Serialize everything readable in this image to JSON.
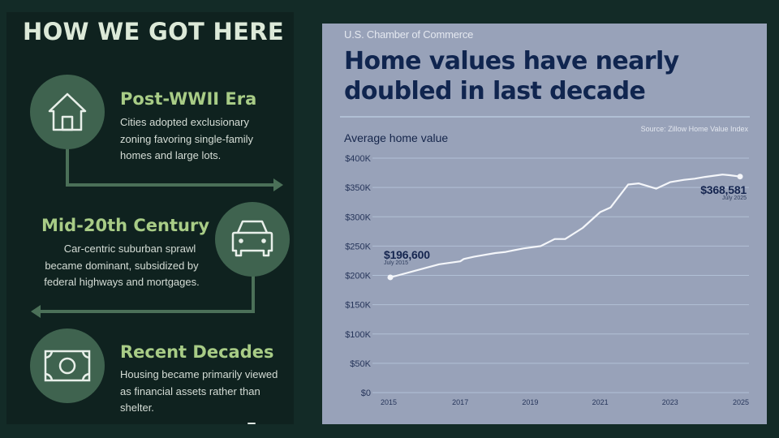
{
  "left_panel": {
    "title": "HOW WE GOT HERE",
    "eras": [
      {
        "icon": "house-icon",
        "title": "Post-WWII Era",
        "lines": [
          "Cities adopted exclusionary",
          "zoning favoring single-family",
          "homes and large lots."
        ]
      },
      {
        "icon": "car-icon",
        "title": "Mid-20th Century",
        "lines": [
          "Car-centric suburban sprawl",
          "became dominant, subsidized by",
          "federal highways and mortgages."
        ]
      },
      {
        "icon": "money-bill-icon",
        "title": "Recent Decades",
        "lines": [
          "Housing became primarily viewed",
          "as financial assets rather than",
          "shelter."
        ]
      }
    ],
    "colors": {
      "background": "#0f221f",
      "circle": "#3f634f",
      "title": "#dce9d8",
      "era_title": "#a8cc86",
      "connector": "#4b7058"
    }
  },
  "right_panel": {
    "org": "U.S. Chamber of Commerce",
    "headline_line1": "Home values have nearly",
    "headline_line2": "doubled in last decade",
    "source": "Source: Zillow Home Value Index",
    "y_title": "Average home value",
    "start_label": {
      "value": "$196,600",
      "date": "July 2015"
    },
    "end_label": {
      "value": "$368,581",
      "date": "July 2025"
    },
    "colors": {
      "background": "#98a2b9",
      "headline": "#10254f",
      "line": "#f4f6fa",
      "grid": "#b2c0d6"
    }
  },
  "chart_data": {
    "type": "line",
    "title": "Home values have nearly doubled in last decade",
    "subtitle": "U.S. Chamber of Commerce",
    "source": "Source: Zillow Home Value Index",
    "xlabel": "",
    "ylabel": "Average home value",
    "x_ticks": [
      "2015",
      "2017",
      "2019",
      "2021",
      "2023",
      "2025"
    ],
    "y_ticks": [
      "$0",
      "$50K",
      "$100K",
      "$150K",
      "$200K",
      "$250K",
      "$300K",
      "$350K",
      "$400K"
    ],
    "ylim": [
      0,
      400000
    ],
    "xlim": [
      2015,
      2025
    ],
    "grid": true,
    "legend": "none",
    "series": [
      {
        "name": "Average home value",
        "x": [
          2015.5,
          2016.9,
          2017.5,
          2017.6,
          2017.9,
          2018.5,
          2018.8,
          2019.3,
          2019.8,
          2020.2,
          2020.5,
          2021.0,
          2021.5,
          2021.8,
          2022.3,
          2022.6,
          2023.1,
          2023.5,
          2023.9,
          2024.2,
          2024.5,
          2025.0,
          2025.2,
          2025.5
        ],
        "values": [
          196600,
          219000,
          224000,
          228000,
          232000,
          238000,
          240000,
          246000,
          250000,
          262000,
          262000,
          281000,
          308000,
          316000,
          355000,
          357000,
          348000,
          359000,
          363000,
          365000,
          368000,
          372000,
          371000,
          368581
        ]
      }
    ],
    "annotations": [
      {
        "text": "$196,600",
        "sub": "July 2015",
        "x": 2015.5,
        "y": 196600
      },
      {
        "text": "$368,581",
        "sub": "July 2025",
        "x": 2025.5,
        "y": 368581
      }
    ]
  }
}
